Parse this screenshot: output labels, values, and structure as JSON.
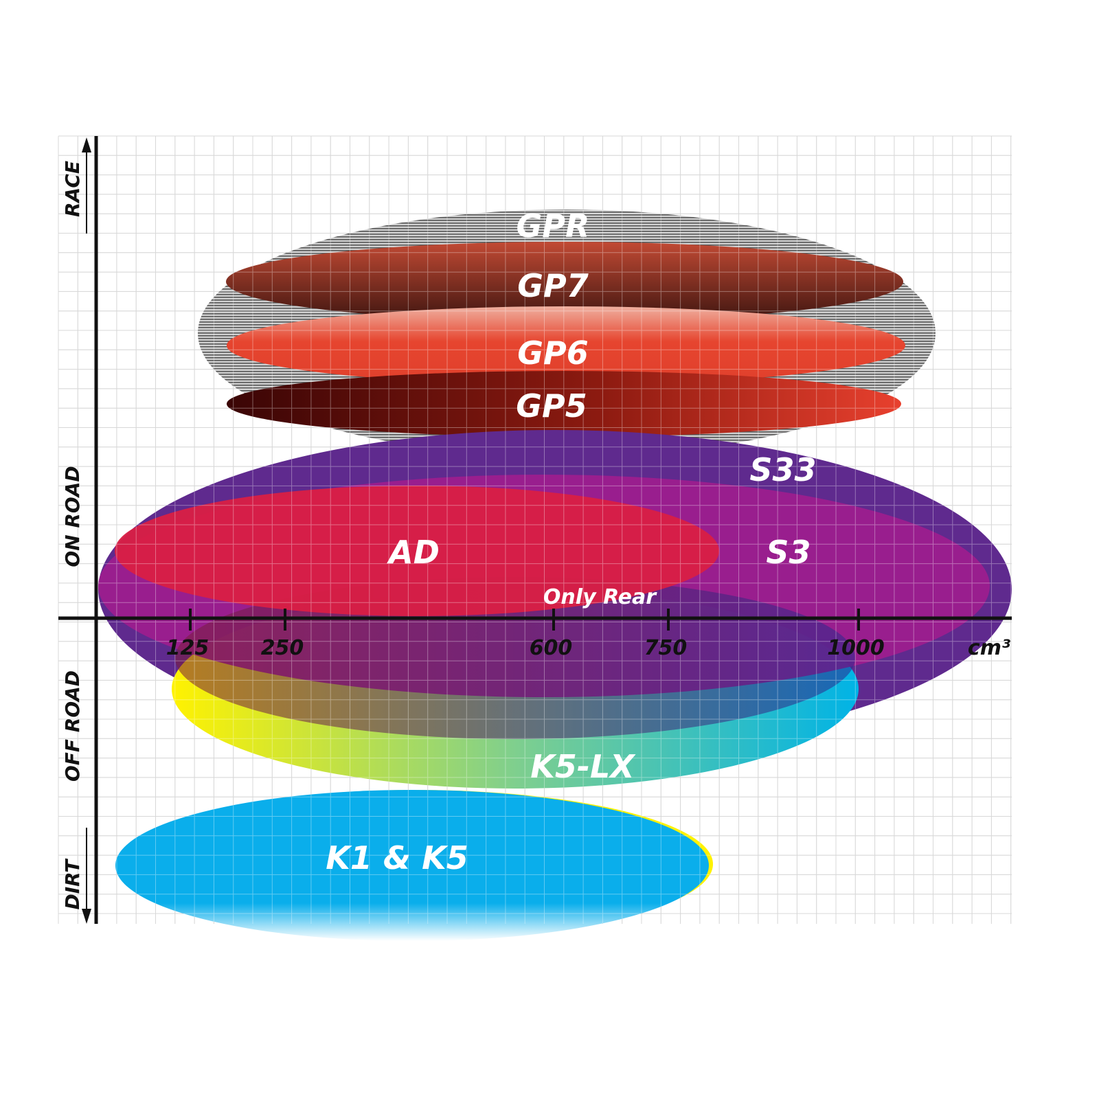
{
  "y_axis_labels": [
    "RACE",
    "ON ROAD",
    "OFF ROAD",
    "DIRT"
  ],
  "x_axis": {
    "ticks": [
      "125",
      "250",
      "600",
      "750",
      "1000"
    ],
    "unit": "cm³"
  },
  "products": [
    {
      "name": "GPR",
      "color": "#9a9a9a"
    },
    {
      "name": "GP7",
      "color": "#7a3526"
    },
    {
      "name": "GP6",
      "color": "#e5432e"
    },
    {
      "name": "GP5",
      "color": "#8a1010"
    },
    {
      "name": "S33",
      "color": "#5f2a8e"
    },
    {
      "name": "S3",
      "color": "#9c1d8e"
    },
    {
      "name": "AD",
      "color": "#d91f45"
    },
    {
      "name": "Only Rear",
      "color": "#7a2a6a"
    },
    {
      "name": "K5-LX",
      "color": "#1ab7e0"
    },
    {
      "name": "K1 & K5",
      "color": "#0aaeeb"
    }
  ]
}
